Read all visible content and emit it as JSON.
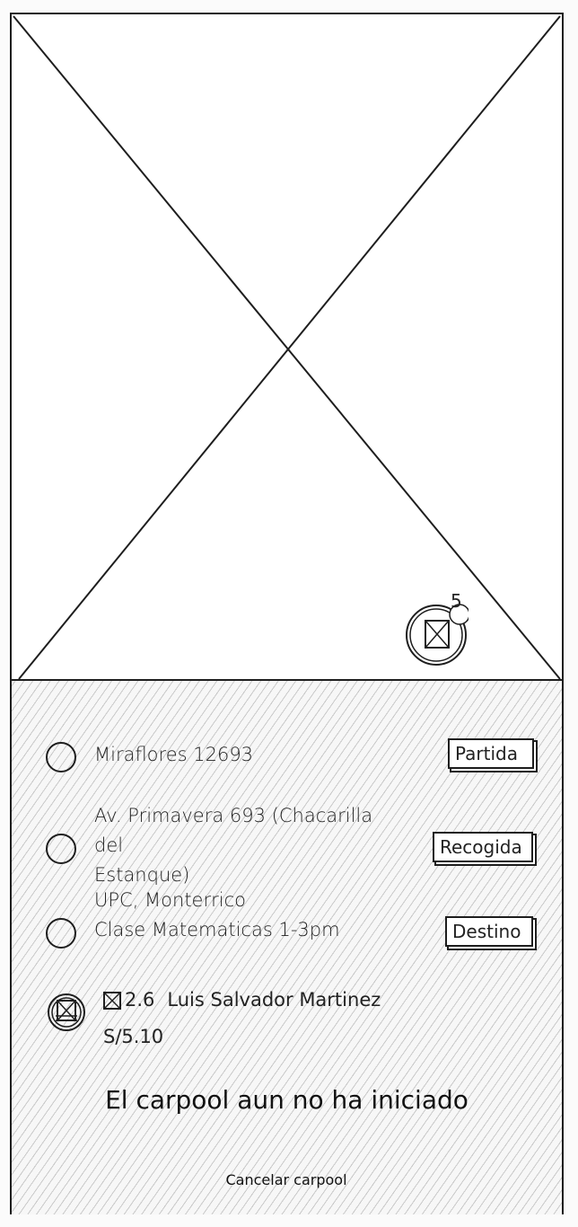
{
  "map": {
    "marker_count": "5",
    "marker_icon": "image-placeholder-icon"
  },
  "route": {
    "stops": [
      {
        "lines": "Miraflores 12693",
        "tag": "Partida"
      },
      {
        "lines": "Av. Primavera 693 (Chacarilla del\nEstanque)",
        "tag": "Recogida"
      },
      {
        "lines": "UPC, Monterrico\nClase Matematicas 1-3pm",
        "tag": "Destino"
      }
    ]
  },
  "driver": {
    "rating": "2.6",
    "name": "Luis Salvador Martinez",
    "price": "S/5.10",
    "avatar_icon": "avatar-icon"
  },
  "status": {
    "message": "El carpool aun no ha iniciado"
  },
  "actions": {
    "cancel_label": "Cancelar carpool"
  }
}
